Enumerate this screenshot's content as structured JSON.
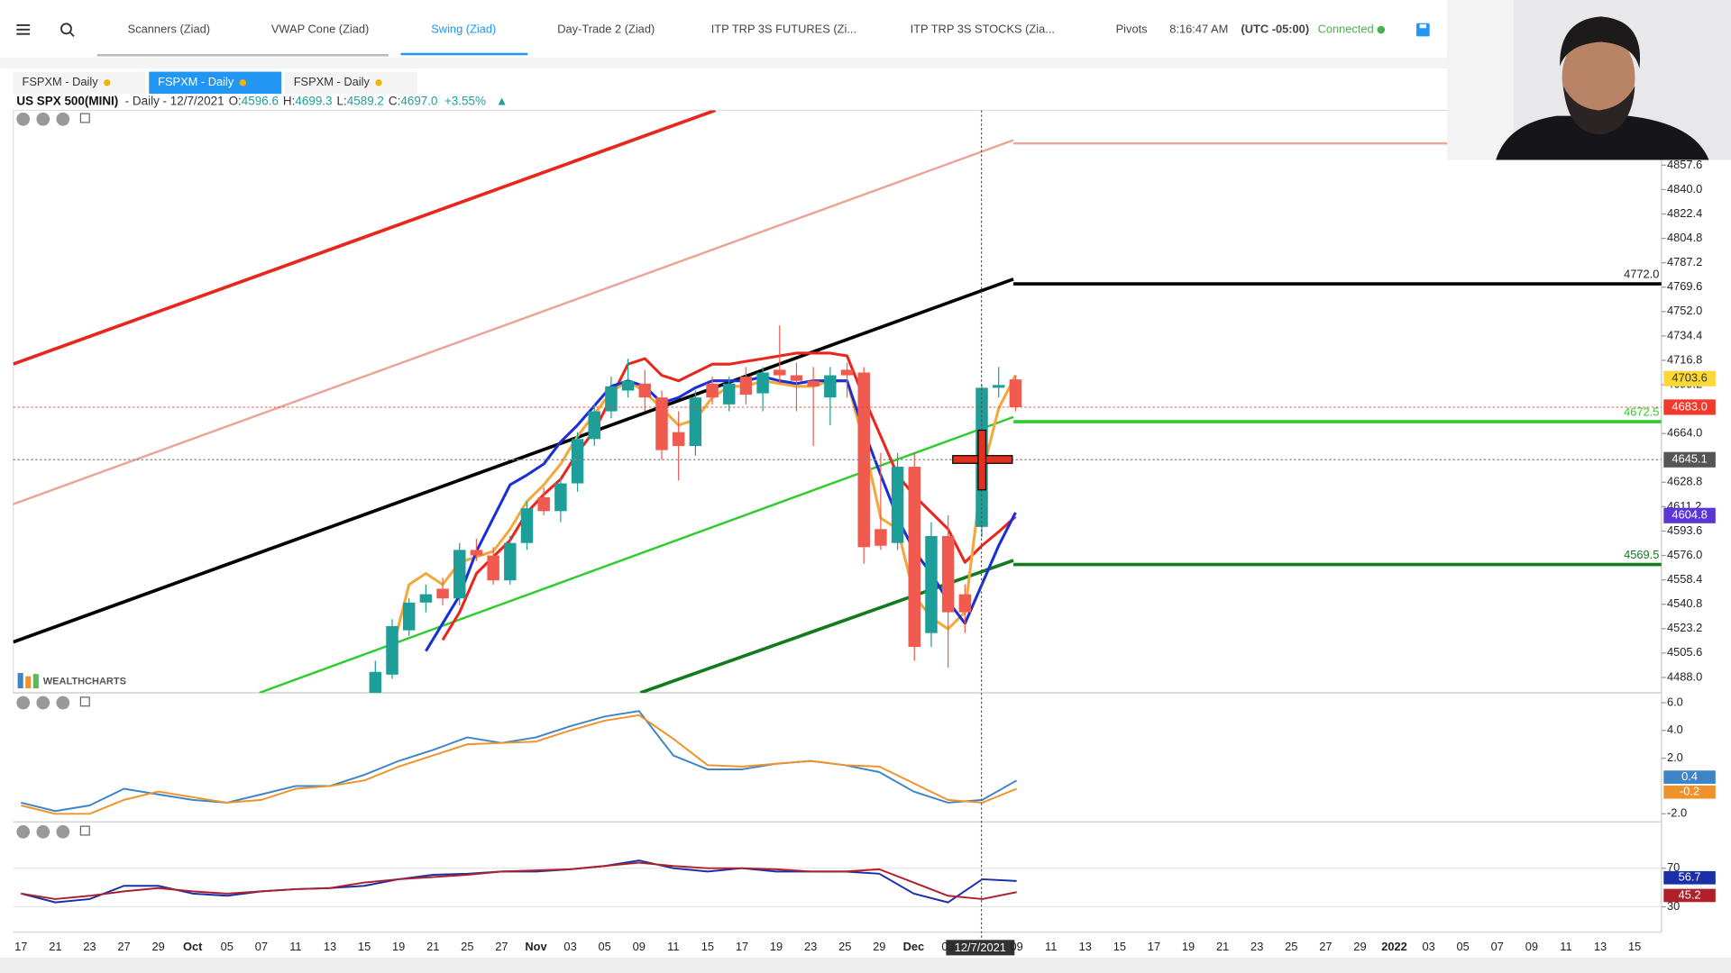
{
  "topbar": {
    "tabs": [
      "Scanners (Ziad)",
      "VWAP Cone (Ziad)",
      "Swing (Ziad)",
      "Day-Trade 2 (Ziad)",
      "ITP TRP 3S FUTURES (Zi...",
      "ITP TRP 3S STOCKS (Zia..."
    ],
    "active_tab": 2,
    "pivots": "Pivots",
    "time": "8:16:47 AM",
    "timezone": "(UTC -05:00)",
    "status": "Connected"
  },
  "chart_tabs": {
    "tabs": [
      "FSPXM - Daily",
      "FSPXM - Daily",
      "FSPXM - Daily"
    ],
    "active": 1
  },
  "chart_data": {
    "type": "candlestick",
    "symbol": "US SPX 500(MINI)",
    "interval": "- Daily - 12/7/2021",
    "ohlc_keys": [
      "O:",
      "H:",
      "L:",
      "C:"
    ],
    "ohlc_values": [
      "4596.6",
      "4699.3",
      "4589.2",
      "4697.0"
    ],
    "change": "+3.55%",
    "brand": "WEALTHCHARTS",
    "cursor_date": "12/7/2021",
    "up_color": "#1e9e98",
    "down_color": "#f05a4f",
    "ylim": [
      4476.9,
      4897.2
    ],
    "yticks": [
      4857.6,
      {
        "value": 4840,
        "label": "4840.0"
      },
      4822.4,
      4804.8,
      4787.2,
      4769.6,
      {
        "value": 4752,
        "label": "4752.0"
      },
      4734.4,
      4716.8,
      4699.2,
      {
        "value": 4664,
        "label": "4664.0"
      },
      4628.8,
      4611.2,
      4593.6,
      {
        "value": 4576,
        "label": "4576.0"
      },
      4558.4,
      4540.8,
      4523.2,
      4505.6,
      {
        "value": 4488,
        "label": "4488.0"
      }
    ],
    "candles": [
      [
        4470,
        4500,
        4465,
        4492
      ],
      [
        4490,
        4530,
        4487,
        4525
      ],
      [
        4522,
        4545,
        4518,
        4542
      ],
      [
        4542,
        4555,
        4535,
        4548
      ],
      [
        4552,
        4560,
        4540,
        4545
      ],
      [
        4545,
        4585,
        4540,
        4580
      ],
      [
        4580,
        4588,
        4572,
        4576
      ],
      [
        4576,
        4582,
        4555,
        4558
      ],
      [
        4558,
        4590,
        4555,
        4585
      ],
      [
        4585,
        4615,
        4580,
        4610
      ],
      [
        4618,
        4625,
        4605,
        4608
      ],
      [
        4608,
        4632,
        4600,
        4628
      ],
      [
        4628,
        4665,
        4622,
        4660
      ],
      [
        4660,
        4685,
        4655,
        4680
      ],
      [
        4680,
        4705,
        4675,
        4698
      ],
      [
        4695,
        4718,
        4690,
        4702
      ],
      [
        4700,
        4710,
        4680,
        4690
      ],
      [
        4690,
        4695,
        4645,
        4652
      ],
      [
        4665,
        4680,
        4630,
        4655
      ],
      [
        4655,
        4695,
        4648,
        4690
      ],
      [
        4700,
        4705,
        4685,
        4690
      ],
      [
        4685,
        4705,
        4680,
        4700
      ],
      [
        4705,
        4712,
        4685,
        4692
      ],
      [
        4693,
        4712,
        4680,
        4708
      ],
      [
        4710,
        4742,
        4700,
        4706
      ],
      [
        4706,
        4715,
        4680,
        4702
      ],
      [
        4702,
        4712,
        4655,
        4698
      ],
      [
        4690,
        4712,
        4670,
        4706
      ],
      [
        4710,
        4715,
        4690,
        4706
      ],
      [
        4708,
        4712,
        4570,
        4582
      ],
      [
        4595,
        4650,
        4580,
        4583
      ],
      [
        4585,
        4650,
        4580,
        4640
      ],
      [
        4640,
        4650,
        4500,
        4510
      ],
      [
        4520,
        4600,
        4510,
        4590
      ],
      [
        4590,
        4605,
        4495,
        4535
      ],
      [
        4548,
        4555,
        4520,
        4535
      ],
      [
        4596.6,
        4699.3,
        4589.2,
        4697
      ],
      [
        4697,
        4712,
        4690,
        4699
      ],
      [
        4703,
        4706,
        4680,
        4683
      ]
    ],
    "overlays": [
      {
        "color": "#e8261c",
        "values": [
          null,
          null,
          null,
          null,
          4515,
          4535,
          4563,
          4575,
          4587,
          4607,
          4620,
          4631,
          4650,
          4666,
          4690,
          4714,
          4718,
          4706,
          4702,
          4708,
          4714,
          4714,
          4716,
          4718,
          4720,
          4722,
          4722,
          4722,
          4720,
          4690,
          4662,
          4634,
          4619,
          4607,
          4595,
          4571,
          4583,
          4593,
          4604
        ]
      },
      {
        "color": "#f2a93b",
        "values": [
          null,
          4507,
          4555,
          4563,
          4555,
          4571,
          4575,
          4579,
          4595,
          4615,
          4627,
          4642,
          4662,
          4678,
          4694,
          4702,
          4694,
          4682,
          4670,
          4674,
          4690,
          4698,
          4698,
          4702,
          4700,
          4698,
          4698,
          4702,
          4702,
          4658,
          4603,
          4595,
          4547,
          4531,
          4523,
          4535,
          4634,
          4682,
          4706
        ]
      },
      {
        "color": "#1a2fd6",
        "values": [
          null,
          null,
          null,
          4507,
          4527,
          4547,
          4579,
          4603,
          4627,
          4634,
          4642,
          4658,
          4670,
          4684,
          4698,
          4702,
          4698,
          4686,
          4690,
          4697,
          4702,
          4702,
          4702,
          4705,
          4702,
          4700,
          4702,
          4702,
          4702,
          4666,
          4634,
          4603,
          4579,
          4563,
          4543,
          4527,
          4555,
          4583,
          4607
        ]
      }
    ],
    "levels": [
      {
        "value": 4772,
        "label": "4772.0",
        "color": "#000000"
      },
      {
        "value": 4672.5,
        "label": "4672.5",
        "color": "#2ecc2e"
      },
      {
        "value": 4569.5,
        "label": "4569.5",
        "color": "#137a1e"
      }
    ],
    "price_tags": [
      {
        "value": 4703.6,
        "color": "#fdd835",
        "text_color": "#333333"
      },
      {
        "value": 4683,
        "label": "4683.0",
        "color": "#f0392b",
        "text_color": "#ffffff"
      },
      {
        "value": 4645.1,
        "color": "#555555",
        "text_color": "#ffffff"
      },
      {
        "value": 4604.8,
        "color": "#5b35d6",
        "text_color": "#ffffff"
      }
    ],
    "x_labels": [
      "17",
      "21",
      "23",
      "27",
      "29",
      "Oct",
      "05",
      "07",
      "11",
      "13",
      "15",
      "19",
      "21",
      "25",
      "27",
      "Nov",
      "03",
      "05",
      "09",
      "11",
      "15",
      "17",
      "19",
      "23",
      "25",
      "29",
      "Dec",
      "03",
      null,
      "09",
      "11",
      "13",
      "15",
      "17",
      "19",
      "21",
      "23",
      "25",
      "27",
      "29",
      "2022",
      "03",
      "05",
      "07",
      "09",
      "11",
      "13",
      "15"
    ]
  },
  "macd": {
    "type": "line",
    "ylim": [
      -2.58,
      6.55
    ],
    "yticks": [
      {
        "value": 6,
        "label": "6.0"
      },
      {
        "value": 4,
        "label": "4.0"
      },
      {
        "value": 2,
        "label": "2.0"
      },
      {
        "value": -2,
        "label": "-2.0"
      }
    ],
    "series": [
      {
        "color": "#3d85c6",
        "values": [
          -1.2,
          -1.8,
          -1.4,
          -0.2,
          -0.6,
          -1.0,
          -1.2,
          -0.6,
          0,
          0,
          0.8,
          1.8,
          2.6,
          3.5,
          3.1,
          3.5,
          4.3,
          5.0,
          5.4,
          2.2,
          1.2,
          1.2,
          1.6,
          1.8,
          1.5,
          1.0,
          -0.4,
          -1.2,
          -1.0,
          0.4
        ]
      },
      {
        "color": "#f0922b",
        "values": [
          -1.4,
          -2.0,
          -2.0,
          -1.0,
          -0.4,
          -0.8,
          -1.2,
          -1.0,
          -0.2,
          0,
          0.4,
          1.4,
          2.2,
          3.0,
          3.1,
          3.2,
          4.0,
          4.7,
          5.1,
          3.4,
          1.5,
          1.4,
          1.6,
          1.8,
          1.5,
          1.4,
          0.2,
          -1.0,
          -1.2,
          -0.2
        ]
      }
    ]
  },
  "rsi": {
    "type": "line",
    "ylim": [
      3.7,
      114.6
    ],
    "yticks": [
      70,
      30
    ],
    "grid": true,
    "series": [
      {
        "color": "#1a2fa8",
        "values": [
          43.7,
          34.6,
          38,
          51.7,
          51.7,
          43.7,
          41.4,
          46,
          48.3,
          49.4,
          51.7,
          58.6,
          63.1,
          64.3,
          66.6,
          66.6,
          68.9,
          72.3,
          78,
          70,
          66.6,
          70,
          66.6,
          66.6,
          66.6,
          64.3,
          43.7,
          34.6,
          58.6,
          56.7
        ]
      },
      {
        "color": "#b0202a",
        "values": [
          43.7,
          38,
          41.4,
          46,
          49.4,
          46,
          43.7,
          46,
          48.3,
          49.4,
          55.1,
          58.6,
          60.9,
          63.1,
          66.6,
          67.7,
          68.9,
          72.3,
          75.7,
          72.3,
          70,
          70,
          68.9,
          66.6,
          66.6,
          68.9,
          55.1,
          41.4,
          38,
          45.2
        ]
      }
    ]
  }
}
